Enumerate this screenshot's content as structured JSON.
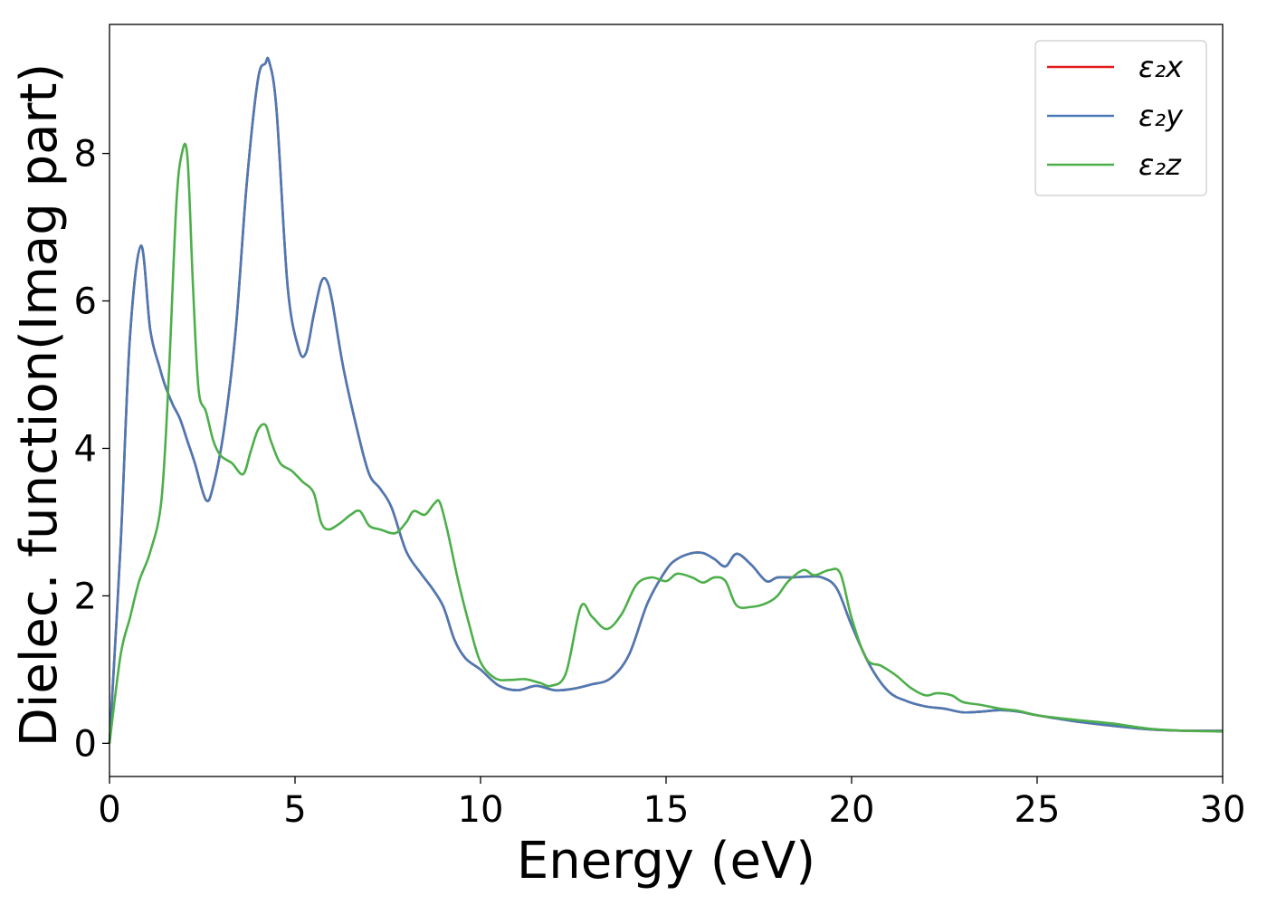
{
  "chart_data": {
    "type": "line",
    "xlabel": "Energy (eV)",
    "ylabel": "Dielec. function(Imag part)",
    "xlim": [
      0,
      30
    ],
    "ylim": [
      -0.45,
      9.75
    ],
    "xticks": [
      0,
      5,
      10,
      15,
      20,
      25,
      30
    ],
    "yticks": [
      0,
      2,
      4,
      6,
      8
    ],
    "grid": false,
    "legend_position": "top-right",
    "series": [
      {
        "name": "ε₂x",
        "color": "#e41a1c",
        "x": [
          0,
          0.3,
          0.55,
          0.85,
          1.1,
          1.35,
          1.5,
          1.7,
          1.9,
          2.1,
          2.3,
          2.6,
          2.8,
          3.1,
          3.4,
          3.7,
          4.0,
          4.2,
          4.3,
          4.5,
          4.8,
          5.1,
          5.3,
          5.5,
          5.7,
          5.85,
          6.0,
          6.3,
          6.7,
          7.0,
          7.3,
          7.6,
          8.0,
          8.4,
          8.7,
          9.0,
          9.3,
          9.6,
          10.0,
          10.5,
          11.0,
          11.5,
          12.0,
          12.5,
          13.0,
          13.5,
          14.0,
          14.5,
          15.0,
          15.3,
          15.7,
          16.0,
          16.3,
          16.6,
          16.9,
          17.3,
          17.7,
          18.0,
          18.4,
          18.8,
          19.2,
          19.6,
          20.0,
          20.5,
          21.0,
          21.5,
          22.0,
          22.5,
          23.0,
          23.5,
          24.0,
          24.5,
          25.0,
          26.0,
          27.0,
          28.0,
          29.0,
          30.0
        ],
        "y": [
          0.0,
          2.7,
          5.5,
          6.75,
          5.6,
          5.1,
          4.85,
          4.6,
          4.4,
          4.1,
          3.8,
          3.3,
          3.5,
          4.3,
          5.6,
          7.6,
          9.0,
          9.22,
          9.25,
          8.6,
          6.2,
          5.35,
          5.3,
          5.8,
          6.25,
          6.28,
          6.0,
          5.1,
          4.2,
          3.65,
          3.45,
          3.2,
          2.6,
          2.3,
          2.1,
          1.85,
          1.4,
          1.15,
          1.0,
          0.78,
          0.72,
          0.78,
          0.72,
          0.74,
          0.8,
          0.88,
          1.2,
          1.9,
          2.35,
          2.5,
          2.58,
          2.58,
          2.5,
          2.4,
          2.57,
          2.42,
          2.2,
          2.25,
          2.25,
          2.26,
          2.25,
          2.1,
          1.6,
          1.05,
          0.7,
          0.57,
          0.5,
          0.47,
          0.42,
          0.43,
          0.45,
          0.43,
          0.38,
          0.3,
          0.24,
          0.19,
          0.17,
          0.17
        ]
      },
      {
        "name": "ε₂y",
        "color": "#4a7ab5",
        "x": [
          0,
          0.3,
          0.55,
          0.85,
          1.1,
          1.35,
          1.5,
          1.7,
          1.9,
          2.1,
          2.3,
          2.6,
          2.8,
          3.1,
          3.4,
          3.7,
          4.0,
          4.2,
          4.3,
          4.5,
          4.8,
          5.1,
          5.3,
          5.5,
          5.7,
          5.85,
          6.0,
          6.3,
          6.7,
          7.0,
          7.3,
          7.6,
          8.0,
          8.4,
          8.7,
          9.0,
          9.3,
          9.6,
          10.0,
          10.5,
          11.0,
          11.5,
          12.0,
          12.5,
          13.0,
          13.5,
          14.0,
          14.5,
          15.0,
          15.3,
          15.7,
          16.0,
          16.3,
          16.6,
          16.9,
          17.3,
          17.7,
          18.0,
          18.4,
          18.8,
          19.2,
          19.6,
          20.0,
          20.5,
          21.0,
          21.5,
          22.0,
          22.5,
          23.0,
          23.5,
          24.0,
          24.5,
          25.0,
          26.0,
          27.0,
          28.0,
          29.0,
          30.0
        ],
        "y": [
          0.0,
          2.7,
          5.5,
          6.75,
          5.6,
          5.1,
          4.85,
          4.6,
          4.4,
          4.1,
          3.8,
          3.3,
          3.5,
          4.3,
          5.6,
          7.6,
          9.0,
          9.22,
          9.25,
          8.6,
          6.2,
          5.35,
          5.3,
          5.8,
          6.25,
          6.28,
          6.0,
          5.1,
          4.2,
          3.65,
          3.45,
          3.2,
          2.6,
          2.3,
          2.1,
          1.85,
          1.4,
          1.15,
          1.0,
          0.78,
          0.72,
          0.78,
          0.72,
          0.74,
          0.8,
          0.88,
          1.2,
          1.9,
          2.35,
          2.5,
          2.58,
          2.58,
          2.5,
          2.4,
          2.57,
          2.42,
          2.2,
          2.25,
          2.25,
          2.26,
          2.25,
          2.1,
          1.6,
          1.05,
          0.7,
          0.57,
          0.5,
          0.47,
          0.42,
          0.43,
          0.45,
          0.43,
          0.38,
          0.3,
          0.24,
          0.19,
          0.17,
          0.17
        ]
      },
      {
        "name": "ε₂z",
        "color": "#4daf4a",
        "x": [
          0,
          0.3,
          0.55,
          0.8,
          1.1,
          1.4,
          1.6,
          1.8,
          1.95,
          2.1,
          2.25,
          2.4,
          2.6,
          2.8,
          3.0,
          3.3,
          3.6,
          3.8,
          4.0,
          4.2,
          4.35,
          4.6,
          4.9,
          5.2,
          5.5,
          5.7,
          5.9,
          6.2,
          6.5,
          6.75,
          7.0,
          7.3,
          7.7,
          8.0,
          8.2,
          8.5,
          8.75,
          8.9,
          9.1,
          9.4,
          9.7,
          10.0,
          10.4,
          10.8,
          11.2,
          11.6,
          11.9,
          12.3,
          12.7,
          13.0,
          13.4,
          13.8,
          14.2,
          14.6,
          15.0,
          15.3,
          15.7,
          16.0,
          16.3,
          16.6,
          16.9,
          17.3,
          17.7,
          18.0,
          18.3,
          18.7,
          19.0,
          19.4,
          19.7,
          20.0,
          20.4,
          20.8,
          21.2,
          21.6,
          22.0,
          22.3,
          22.7,
          23.0,
          23.5,
          24.0,
          24.5,
          25.0,
          26.0,
          27.0,
          28.0,
          29.0,
          30.0
        ],
        "y": [
          0.0,
          1.2,
          1.7,
          2.2,
          2.6,
          3.3,
          5.0,
          7.3,
          8.0,
          7.95,
          6.2,
          4.8,
          4.5,
          4.1,
          3.9,
          3.8,
          3.65,
          3.95,
          4.25,
          4.32,
          4.1,
          3.8,
          3.7,
          3.55,
          3.4,
          3.0,
          2.9,
          2.98,
          3.1,
          3.15,
          2.95,
          2.9,
          2.85,
          3.0,
          3.15,
          3.1,
          3.25,
          3.27,
          2.9,
          2.2,
          1.6,
          1.1,
          0.88,
          0.86,
          0.87,
          0.82,
          0.78,
          0.95,
          1.85,
          1.72,
          1.55,
          1.75,
          2.15,
          2.25,
          2.2,
          2.3,
          2.25,
          2.18,
          2.25,
          2.2,
          1.87,
          1.85,
          1.9,
          2.0,
          2.2,
          2.35,
          2.28,
          2.35,
          2.3,
          1.7,
          1.15,
          1.05,
          0.92,
          0.75,
          0.65,
          0.68,
          0.65,
          0.56,
          0.52,
          0.47,
          0.44,
          0.38,
          0.32,
          0.27,
          0.2,
          0.17,
          0.16
        ]
      }
    ]
  }
}
